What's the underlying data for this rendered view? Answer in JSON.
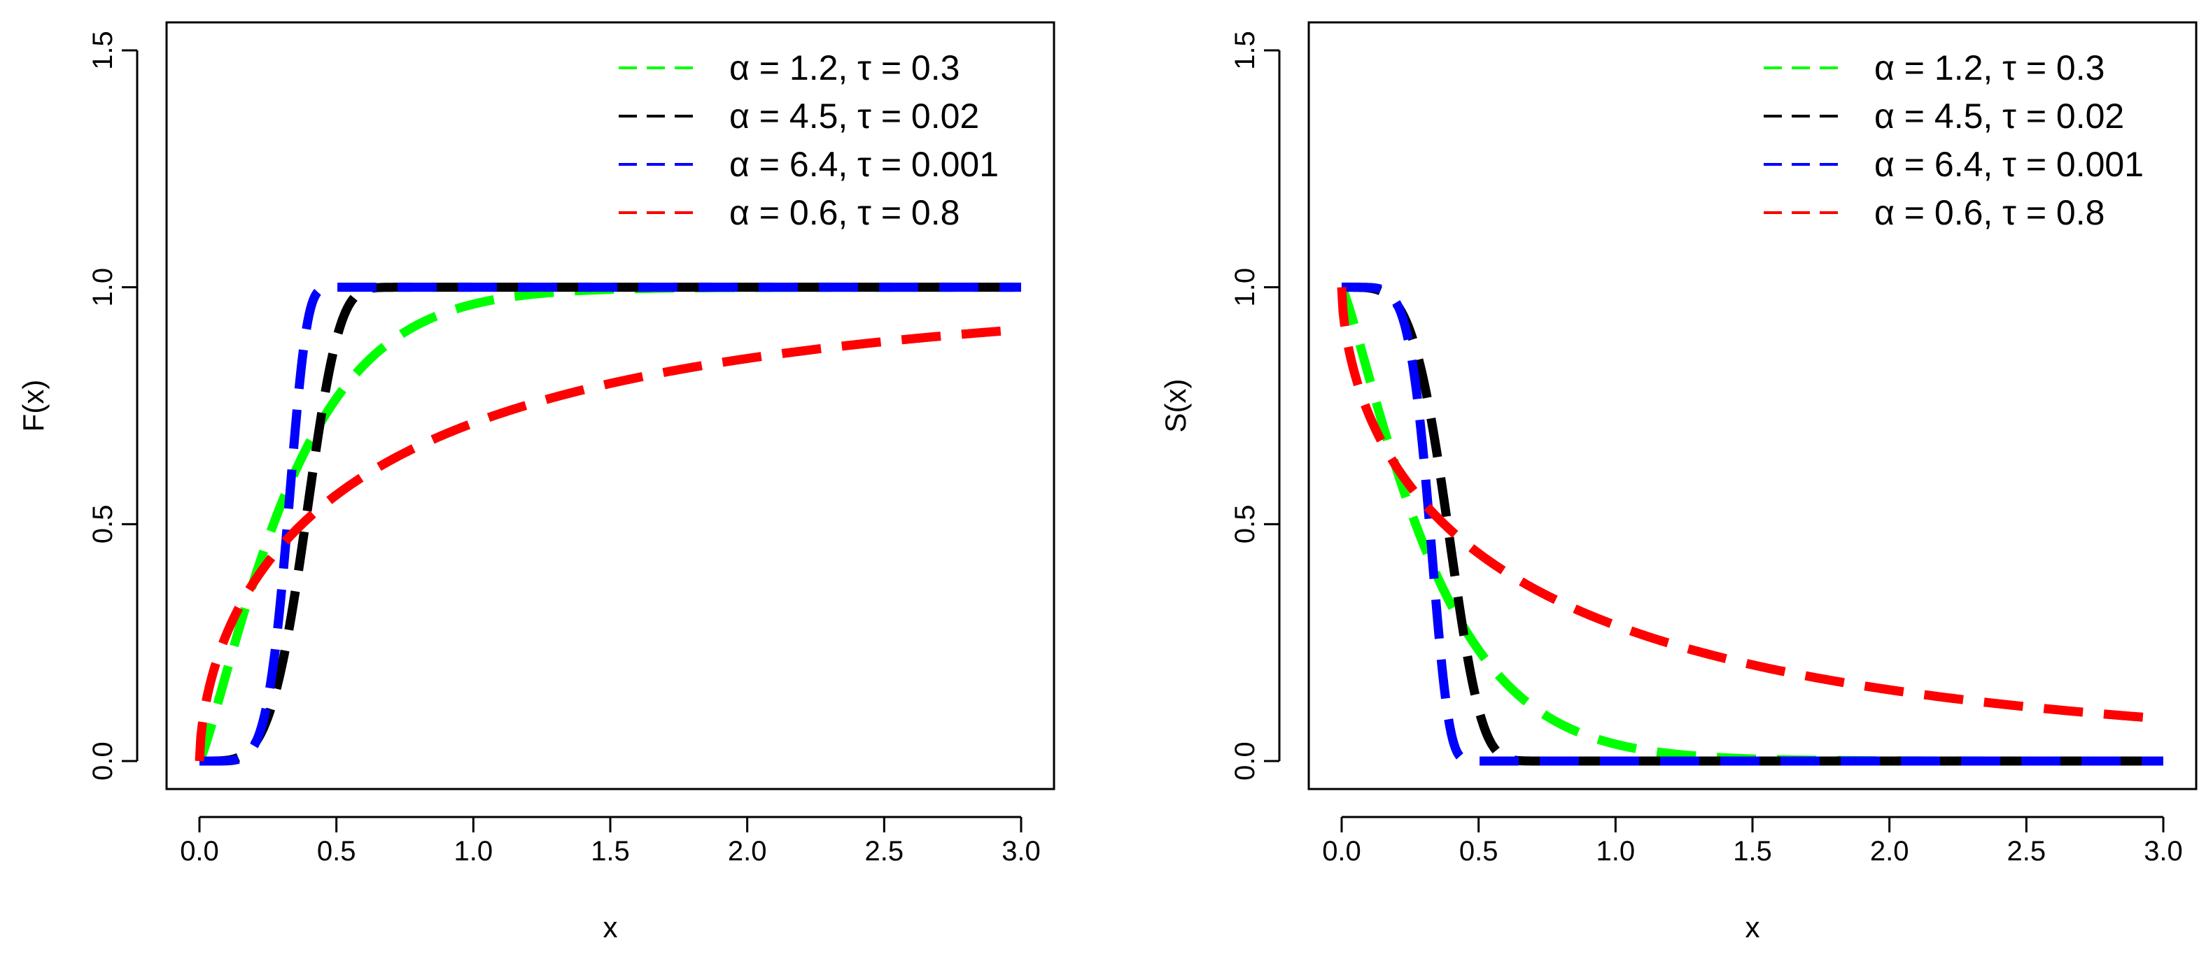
{
  "chart_data": [
    {
      "type": "line",
      "id": "cdf",
      "title": "",
      "xlabel": "x",
      "ylabel": "F(x)",
      "xlim": [
        0,
        3
      ],
      "ylim": [
        0,
        1.5
      ],
      "xticks": [
        "0.0",
        "0.5",
        "1.0",
        "1.5",
        "2.0",
        "2.5",
        "3.0"
      ],
      "yticks": [
        "0.0",
        "0.5",
        "1.0",
        "1.5"
      ],
      "line_style": "dashed",
      "legend_position": "top-right",
      "series": [
        {
          "name": "α = 1.2, τ = 0.3",
          "alpha": 1.2,
          "tau": 0.3,
          "color": "#00ff00"
        },
        {
          "name": "α = 4.5, τ = 0.02",
          "alpha": 4.5,
          "tau": 0.02,
          "color": "#000000"
        },
        {
          "name": "α = 6.4, τ = 0.001",
          "alpha": 6.4,
          "tau": 0.001,
          "color": "#0000ff"
        },
        {
          "name": "α = 0.6, τ = 0.8",
          "alpha": 0.6,
          "tau": 0.8,
          "color": "#ff0000"
        }
      ]
    },
    {
      "type": "line",
      "id": "survival",
      "title": "",
      "xlabel": "x",
      "ylabel": "S(x)",
      "xlim": [
        0,
        3
      ],
      "ylim": [
        0,
        1.5
      ],
      "xticks": [
        "0.0",
        "0.5",
        "1.0",
        "1.5",
        "2.0",
        "2.5",
        "3.0"
      ],
      "yticks": [
        "0.0",
        "0.5",
        "1.0",
        "1.5"
      ],
      "line_style": "dashed",
      "legend_position": "top-right",
      "series": [
        {
          "name": "α = 1.2, τ = 0.3",
          "alpha": 1.2,
          "tau": 0.3,
          "color": "#00ff00"
        },
        {
          "name": "α = 4.5, τ = 0.02",
          "alpha": 4.5,
          "tau": 0.02,
          "color": "#000000"
        },
        {
          "name": "α = 6.4, τ = 0.001",
          "alpha": 6.4,
          "tau": 0.001,
          "color": "#0000ff"
        },
        {
          "name": "α = 0.6, τ = 0.8",
          "alpha": 0.6,
          "tau": 0.8,
          "color": "#ff0000"
        }
      ]
    }
  ]
}
